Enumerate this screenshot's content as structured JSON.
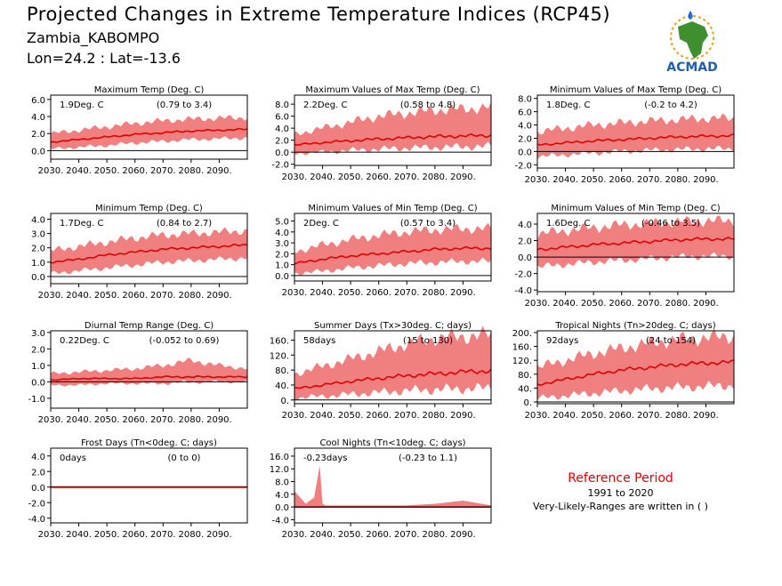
{
  "header": {
    "title": "Projected Changes in Extreme Temperature Indices (RCP45)",
    "location": "Zambia_KABOMPO",
    "coords": "Lon=24.2 : Lat=-13.6"
  },
  "logo": {
    "text": "ACMAD",
    "icon": "africa-map-icon",
    "drop_color": "#1f6fd1",
    "text_color": "#1f5fae",
    "map_color": "#3f8f2f",
    "sun_color": "#e8a317"
  },
  "colors": {
    "band": "#f08080",
    "line": "#e00000",
    "zero_line": "#000000"
  },
  "reference": {
    "title": "Reference Period",
    "years": "1991 to 2020",
    "note": "Very-Likely-Ranges are written in ( )"
  },
  "chart_data": [
    {
      "type": "area",
      "title": "Maximum Temp (Deg. C)",
      "value_label": "1.9Deg. C",
      "range_label": "(0.79 to 3.4)",
      "x_ticks": [
        "2030.",
        "2040.",
        "2050.",
        "2060.",
        "2070.",
        "2080.",
        "2090."
      ],
      "y_ticks": [
        "0.0",
        "2.0",
        "4.0",
        "6.0"
      ],
      "y_tick_values": [
        0,
        2,
        4,
        6
      ],
      "ylim": [
        -1.0,
        6.5
      ],
      "xlim": [
        2030,
        2100
      ],
      "x": [
        2030,
        2040,
        2050,
        2060,
        2070,
        2080,
        2090,
        2100
      ],
      "median": [
        1.0,
        1.3,
        1.6,
        1.9,
        2.1,
        2.3,
        2.4,
        2.5
      ],
      "lower": [
        0.2,
        0.4,
        0.6,
        0.9,
        1.1,
        1.3,
        1.4,
        1.5
      ],
      "upper": [
        2.0,
        2.4,
        2.8,
        3.2,
        3.5,
        3.7,
        3.8,
        3.9
      ]
    },
    {
      "type": "area",
      "title": "Maximum Values of Max Temp (Deg. C)",
      "value_label": "2.2Deg. C",
      "range_label": "(0.58 to 4.8)",
      "x_ticks": [
        "2030.",
        "2040.",
        "2050.",
        "2060.",
        "2070.",
        "2080.",
        "2090."
      ],
      "y_ticks": [
        "-2.0",
        "0.0",
        "2.0",
        "4.0",
        "6.0",
        "8.0"
      ],
      "y_tick_values": [
        -2,
        0,
        2,
        4,
        6,
        8
      ],
      "ylim": [
        -2.2,
        9.5
      ],
      "xlim": [
        2030,
        2100
      ],
      "x": [
        2030,
        2040,
        2050,
        2060,
        2070,
        2080,
        2090,
        2100
      ],
      "median": [
        1.2,
        1.6,
        1.9,
        2.2,
        2.4,
        2.6,
        2.7,
        2.8
      ],
      "lower": [
        -0.2,
        0.0,
        0.3,
        0.5,
        0.7,
        0.8,
        0.9,
        1.0
      ],
      "upper": [
        3.0,
        4.0,
        5.0,
        6.0,
        6.5,
        7.0,
        7.2,
        7.5
      ]
    },
    {
      "type": "area",
      "title": "Minimum Values of Max Temp (Deg. C)",
      "value_label": "1.8Deg. C",
      "range_label": "(-0.2 to 4.2)",
      "x_ticks": [
        "2030.",
        "2040.",
        "2050.",
        "2060.",
        "2070.",
        "2080.",
        "2090."
      ],
      "y_ticks": [
        "-2.0",
        "0.0",
        "2.0",
        "4.0",
        "6.0",
        "8.0"
      ],
      "y_tick_values": [
        -2,
        0,
        2,
        4,
        6,
        8
      ],
      "ylim": [
        -2.5,
        8.5
      ],
      "xlim": [
        2030,
        2100
      ],
      "x": [
        2030,
        2040,
        2050,
        2060,
        2070,
        2080,
        2090,
        2100
      ],
      "median": [
        1.0,
        1.3,
        1.6,
        1.8,
        2.0,
        2.2,
        2.3,
        2.4
      ],
      "lower": [
        -0.8,
        -0.5,
        -0.2,
        0.0,
        0.2,
        0.3,
        0.4,
        0.4
      ],
      "upper": [
        3.0,
        3.5,
        4.0,
        4.3,
        4.6,
        4.8,
        5.0,
        5.0
      ]
    },
    {
      "type": "area",
      "title": "Minimum Temp (Deg. C)",
      "value_label": "1.7Deg. C",
      "range_label": "(0.84 to 2.7)",
      "x_ticks": [
        "2030.",
        "2040.",
        "2050.",
        "2060.",
        "2070.",
        "2080.",
        "2090."
      ],
      "y_ticks": [
        "0.0",
        "1.0",
        "2.0",
        "3.0",
        "4.0"
      ],
      "y_tick_values": [
        0,
        1,
        2,
        3,
        4
      ],
      "ylim": [
        -0.5,
        4.4
      ],
      "xlim": [
        2030,
        2100
      ],
      "x": [
        2030,
        2040,
        2050,
        2060,
        2070,
        2080,
        2090,
        2100
      ],
      "median": [
        1.0,
        1.2,
        1.5,
        1.7,
        1.9,
        2.0,
        2.1,
        2.2
      ],
      "lower": [
        0.2,
        0.4,
        0.6,
        0.8,
        1.0,
        1.1,
        1.2,
        1.3
      ],
      "upper": [
        1.8,
        2.1,
        2.4,
        2.7,
        2.9,
        3.0,
        3.1,
        3.2
      ]
    },
    {
      "type": "area",
      "title": "Minimum Values of Min Temp (Deg. C)",
      "value_label": "2Deg. C",
      "range_label": "(0.57 to 3.4)",
      "x_ticks": [
        "2030.",
        "2040.",
        "2050.",
        "2060.",
        "2070.",
        "2080.",
        "2090."
      ],
      "y_ticks": [
        "0.0",
        "1.0",
        "2.0",
        "3.0",
        "4.0",
        "5.0"
      ],
      "y_tick_values": [
        0,
        1,
        2,
        3,
        4,
        5
      ],
      "ylim": [
        -0.5,
        5.7
      ],
      "xlim": [
        2030,
        2100
      ],
      "x": [
        2030,
        2040,
        2050,
        2060,
        2070,
        2080,
        2090,
        2100
      ],
      "median": [
        1.1,
        1.5,
        1.8,
        2.0,
        2.2,
        2.4,
        2.5,
        2.5
      ],
      "lower": [
        0.2,
        0.4,
        0.7,
        0.9,
        1.1,
        1.2,
        1.3,
        1.3
      ],
      "upper": [
        2.2,
        2.8,
        3.3,
        3.7,
        4.0,
        4.2,
        4.3,
        4.3
      ]
    },
    {
      "type": "area",
      "title": "Minimum Values of Min Temp (Deg. C)",
      "value_label": "1.6Deg. C",
      "range_label": "(-0.46 to 3.5)",
      "x_ticks": [
        "2030.",
        "2040.",
        "2050.",
        "2060.",
        "2070.",
        "2080.",
        "2090."
      ],
      "y_ticks": [
        "-4.0",
        "-2.0",
        "0.0",
        "2.0",
        "4.0"
      ],
      "y_tick_values": [
        -4,
        -2,
        0,
        2,
        4
      ],
      "ylim": [
        -4.2,
        5.3
      ],
      "xlim": [
        2030,
        2100
      ],
      "x": [
        2030,
        2040,
        2050,
        2060,
        2070,
        2080,
        2090,
        2100
      ],
      "median": [
        0.9,
        1.2,
        1.5,
        1.7,
        1.9,
        2.1,
        2.2,
        2.2
      ],
      "lower": [
        -1.2,
        -0.9,
        -0.6,
        -0.4,
        -0.2,
        0.0,
        0.1,
        0.1
      ],
      "upper": [
        2.8,
        3.2,
        3.6,
        3.9,
        4.1,
        4.3,
        4.4,
        4.4
      ]
    },
    {
      "type": "area",
      "title": "Diurnal Temp Range (Deg. C)",
      "value_label": "0.22Deg. C",
      "range_label": "(-0.052 to 0.69)",
      "x_ticks": [
        "2030.",
        "2040.",
        "2050.",
        "2060.",
        "2070.",
        "2080.",
        "2090."
      ],
      "y_ticks": [
        "-1.0",
        "0.0",
        "1.0",
        "2.0",
        "3.0"
      ],
      "y_tick_values": [
        -1,
        0,
        1,
        2,
        3
      ],
      "ylim": [
        -1.6,
        3.1
      ],
      "xlim": [
        2030,
        2100
      ],
      "x": [
        2030,
        2040,
        2050,
        2060,
        2070,
        2080,
        2090,
        2100
      ],
      "median": [
        0.1,
        0.2,
        0.2,
        0.2,
        0.3,
        0.3,
        0.3,
        0.3
      ],
      "lower": [
        -0.2,
        -0.2,
        -0.1,
        -0.1,
        -0.1,
        0.0,
        0.0,
        0.0
      ],
      "upper": [
        0.5,
        0.6,
        0.7,
        0.8,
        1.0,
        1.3,
        1.0,
        0.8
      ]
    },
    {
      "type": "area",
      "title": "Summer Days (Tx>30deg. C; days)",
      "value_label": "58days",
      "range_label": "(15 to 130)",
      "x_ticks": [
        "2030.",
        "2040.",
        "2050.",
        "2060.",
        "2070.",
        "2080.",
        "2090."
      ],
      "y_ticks": [
        "0.",
        "40.",
        "80.",
        "120.",
        "160."
      ],
      "y_tick_values": [
        0,
        40,
        80,
        120,
        160
      ],
      "ylim": [
        -10,
        185
      ],
      "xlim": [
        2030,
        2100
      ],
      "x": [
        2030,
        2040,
        2050,
        2060,
        2070,
        2080,
        2090,
        2100
      ],
      "median": [
        30,
        40,
        50,
        58,
        65,
        70,
        75,
        78
      ],
      "lower": [
        5,
        10,
        15,
        20,
        25,
        28,
        30,
        32
      ],
      "upper": [
        70,
        90,
        110,
        130,
        150,
        165,
        170,
        175
      ]
    },
    {
      "type": "area",
      "title": "Tropical Nights (Tn>20deg. C; days)",
      "value_label": "92days",
      "range_label": "(24 to 154)",
      "x_ticks": [
        "2030.",
        "2040.",
        "2050.",
        "2060.",
        "2070.",
        "2080.",
        "2090."
      ],
      "y_ticks": [
        "0.",
        "40.",
        "80.",
        "120.",
        "160.",
        "200."
      ],
      "y_tick_values": [
        0,
        40,
        80,
        120,
        160,
        200
      ],
      "ylim": [
        -5,
        205
      ],
      "xlim": [
        2030,
        2100
      ],
      "x": [
        2030,
        2040,
        2050,
        2060,
        2070,
        2080,
        2090,
        2100
      ],
      "median": [
        50,
        65,
        80,
        92,
        100,
        108,
        112,
        115
      ],
      "lower": [
        10,
        18,
        25,
        32,
        38,
        42,
        45,
        48
      ],
      "upper": [
        100,
        120,
        140,
        155,
        170,
        180,
        185,
        190
      ]
    },
    {
      "type": "area",
      "title": "Frost Days (Tn<0deg. C; days)",
      "value_label": "0days",
      "range_label": "(0 to 0)",
      "x_ticks": [
        "2030.",
        "2040.",
        "2050.",
        "2060.",
        "2070.",
        "2080.",
        "2090."
      ],
      "y_ticks": [
        "-4.0",
        "-2.0",
        "0.0",
        "2.0",
        "4.0"
      ],
      "y_tick_values": [
        -4,
        -2,
        0,
        2,
        4
      ],
      "ylim": [
        -4.6,
        5.0
      ],
      "xlim": [
        2030,
        2100
      ],
      "x": [
        2030,
        2040,
        2050,
        2060,
        2070,
        2080,
        2090,
        2100
      ],
      "median": [
        0,
        0,
        0,
        0,
        0,
        0,
        0,
        0
      ],
      "lower": [
        0,
        0,
        0,
        0,
        0,
        0,
        0,
        0
      ],
      "upper": [
        0,
        0,
        0,
        0,
        0,
        0,
        0,
        0
      ]
    },
    {
      "type": "area",
      "title": "Cool Nights (Tn<10deg. C; days)",
      "value_label": "-0.23days",
      "range_label": "(-0.23 to 1.1)",
      "x_ticks": [
        "2030.",
        "2040.",
        "2050.",
        "2060.",
        "2070.",
        "2080.",
        "2090."
      ],
      "y_ticks": [
        "-4.0",
        "0.0",
        "4.0",
        "8.0",
        "12.0",
        "16.0"
      ],
      "y_tick_values": [
        -4,
        0,
        4,
        8,
        12,
        16
      ],
      "ylim": [
        -5,
        18.5
      ],
      "xlim": [
        2030,
        2100
      ],
      "x": [
        2030,
        2034,
        2037,
        2039,
        2040,
        2041,
        2050,
        2060,
        2070,
        2080,
        2090,
        2100
      ],
      "median": [
        0,
        0,
        0,
        0,
        0,
        0,
        0,
        0,
        0,
        0,
        0,
        0
      ],
      "lower": [
        -0.2,
        -0.2,
        -0.2,
        -0.2,
        -0.2,
        -0.2,
        -0.2,
        -0.2,
        -0.2,
        -0.2,
        -0.2,
        -0.2
      ],
      "upper": [
        5,
        1,
        3,
        13,
        1,
        0.5,
        0.5,
        0.5,
        0.5,
        1,
        2,
        0.5
      ]
    }
  ]
}
